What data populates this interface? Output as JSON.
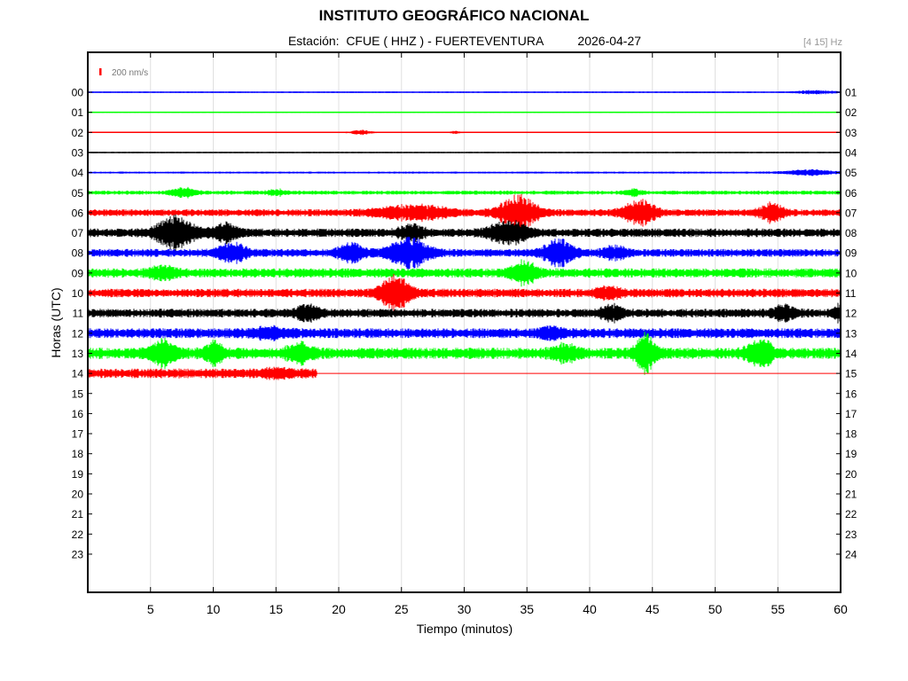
{
  "header": {
    "title": "INSTITUTO GEOGRÁFICO NACIONAL",
    "subtitle_station": "Estación:  CFUE ( HHZ ) - FUERTEVENTURA",
    "subtitle_date": "2026-04-27",
    "freq_band": "[4 15] Hz"
  },
  "chart_data": {
    "type": "line",
    "title": "INSTITUTO GEOGRÁFICO NACIONAL",
    "xlabel": "Tiempo (minutos)",
    "ylabel": "Horas (UTC)",
    "xlim": [
      0,
      60
    ],
    "x_ticks": [
      5,
      10,
      15,
      20,
      25,
      30,
      35,
      40,
      45,
      50,
      55,
      60
    ],
    "left_tick_labels": [
      "00",
      "01",
      "02",
      "03",
      "04",
      "05",
      "06",
      "07",
      "08",
      "09",
      "10",
      "11",
      "12",
      "13",
      "14",
      "15",
      "16",
      "17",
      "18",
      "19",
      "20",
      "21",
      "22",
      "23"
    ],
    "right_tick_labels": [
      "01",
      "02",
      "03",
      "04",
      "05",
      "06",
      "07",
      "08",
      "09",
      "10",
      "11",
      "12",
      "13",
      "14",
      "15",
      "16",
      "17",
      "18",
      "19",
      "20",
      "21",
      "22",
      "23",
      "24"
    ],
    "grid": "vertical",
    "scale_bar": {
      "label": "200 nm/s",
      "color": "#ff0000"
    },
    "color_cycle": [
      "#0000ff",
      "#00ff00",
      "#ff0000",
      "#000000"
    ],
    "traces": [
      {
        "hour": "00",
        "end_min": 60,
        "noise": 0.6,
        "events": [
          [
            58,
            1.5,
            2
          ]
        ]
      },
      {
        "hour": "01",
        "end_min": 60,
        "noise": 0.5,
        "events": []
      },
      {
        "hour": "02",
        "end_min": 60,
        "noise": 0.5,
        "events": [
          [
            21.8,
            0.8,
            2.5
          ],
          [
            29.3,
            0.4,
            1.5
          ]
        ]
      },
      {
        "hour": "03",
        "end_min": 60,
        "noise": 0.6,
        "events": []
      },
      {
        "hour": "04",
        "end_min": 60,
        "noise": 0.8,
        "events": [
          [
            57.5,
            2,
            3
          ]
        ]
      },
      {
        "hour": "05",
        "end_min": 60,
        "noise": 1.6,
        "events": [
          [
            7.7,
            1,
            5
          ],
          [
            15,
            0.8,
            3
          ],
          [
            43.5,
            0.6,
            3
          ]
        ]
      },
      {
        "hour": "06",
        "end_min": 60,
        "noise": 2.8,
        "events": [
          [
            26,
            3,
            7
          ],
          [
            34.3,
            1.5,
            18
          ],
          [
            44,
            1.3,
            14
          ],
          [
            54.5,
            1,
            10
          ]
        ]
      },
      {
        "hour": "07",
        "end_min": 60,
        "noise": 3.5,
        "events": [
          [
            7,
            1.5,
            18
          ],
          [
            11,
            1,
            10
          ],
          [
            25.8,
            1,
            8
          ],
          [
            33.5,
            1.5,
            12
          ]
        ]
      },
      {
        "hour": "08",
        "end_min": 60,
        "noise": 3.2,
        "events": [
          [
            11.5,
            1.2,
            10
          ],
          [
            21,
            1,
            10
          ],
          [
            25.6,
            1.6,
            16
          ],
          [
            37.5,
            1.2,
            14
          ],
          [
            42,
            1,
            6
          ]
        ]
      },
      {
        "hour": "09",
        "end_min": 60,
        "noise": 3.8,
        "events": [
          [
            34.8,
            1,
            12
          ],
          [
            6,
            1,
            6
          ]
        ]
      },
      {
        "hour": "10",
        "end_min": 60,
        "noise": 3.5,
        "events": [
          [
            24.5,
            1.2,
            18
          ],
          [
            41.5,
            1,
            5
          ]
        ]
      },
      {
        "hour": "11",
        "end_min": 60,
        "noise": 3.5,
        "events": [
          [
            17.5,
            1,
            8
          ],
          [
            41.8,
            1,
            7
          ],
          [
            55.5,
            1,
            7
          ],
          [
            59.8,
            0.4,
            8
          ]
        ]
      },
      {
        "hour": "12",
        "end_min": 60,
        "noise": 4,
        "events": [
          [
            37,
            1,
            6
          ],
          [
            14.5,
            1.5,
            4
          ]
        ]
      },
      {
        "hour": "13",
        "end_min": 60,
        "noise": 4.5,
        "events": [
          [
            6,
            1,
            14
          ],
          [
            10,
            0.8,
            10
          ],
          [
            16.8,
            1,
            10
          ],
          [
            44.5,
            0.8,
            20
          ],
          [
            53.6,
            1,
            14
          ],
          [
            38,
            1,
            8
          ]
        ]
      },
      {
        "hour": "14",
        "end_min": 18.3,
        "noise": 4,
        "events": [
          [
            15,
            1,
            4
          ]
        ]
      }
    ]
  }
}
